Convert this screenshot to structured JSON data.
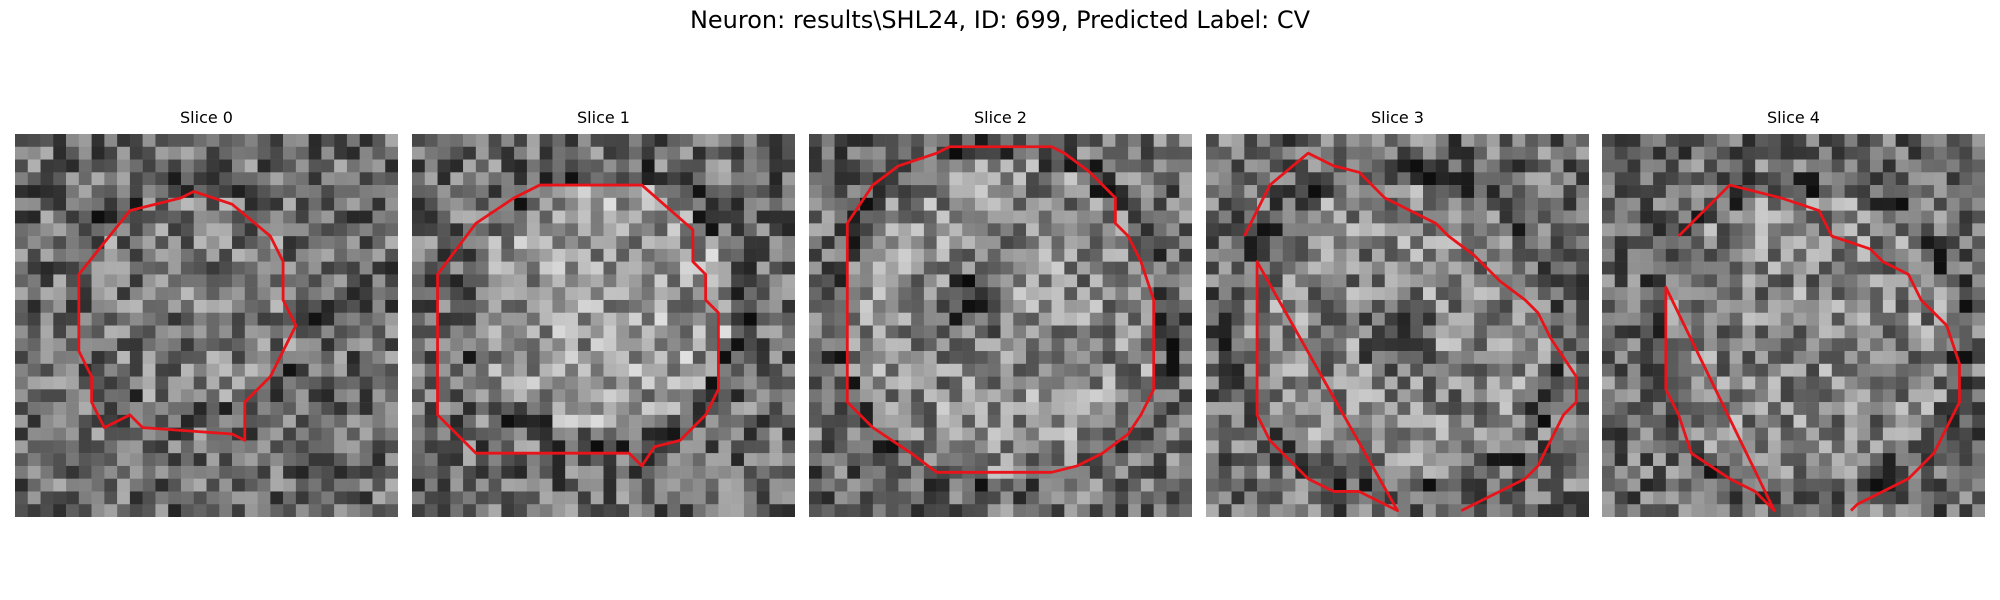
{
  "title": "Neuron: results\\SHL24, ID: 699, Predicted Label: CV",
  "panels": [
    {
      "label": "Slice 0"
    },
    {
      "label": "Slice 1"
    },
    {
      "label": "Slice 2"
    },
    {
      "label": "Slice 3"
    },
    {
      "label": "Slice 4"
    }
  ],
  "colors": {
    "contour": "#e8141a",
    "background": "#ffffff"
  }
}
